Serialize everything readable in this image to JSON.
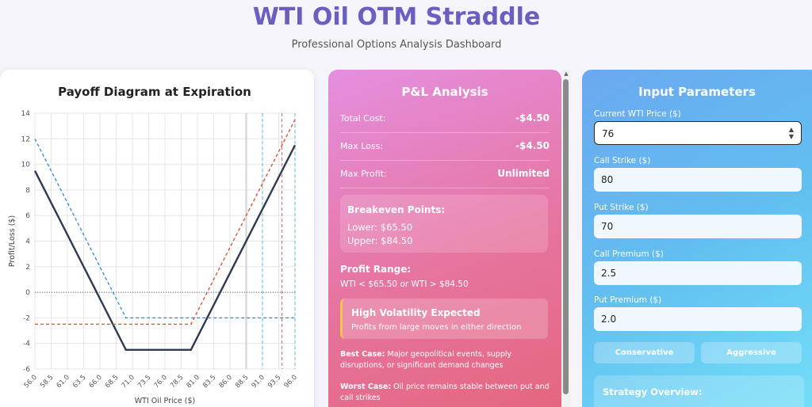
{
  "header": {
    "title": "WTI Oil OTM Straddle",
    "subtitle": "Professional Options Analysis Dashboard"
  },
  "chart_panel": {
    "title": "Payoff Diagram at Expiration"
  },
  "chart_data": {
    "type": "line",
    "xlabel": "WTI Oil Price ($)",
    "ylabel": "Profit/Loss ($)",
    "xlim": [
      56,
      96
    ],
    "ylim": [
      -6,
      14
    ],
    "x_ticks": [
      "56.0",
      "58.5",
      "61.0",
      "63.5",
      "66.0",
      "68.5",
      "71.0",
      "73.5",
      "76.0",
      "78.5",
      "81.0",
      "83.5",
      "86.0",
      "88.5",
      "91.0",
      "93.5",
      "96.0"
    ],
    "y_ticks": [
      "14",
      "12",
      "10",
      "8",
      "6",
      "4",
      "2",
      "0",
      "-2",
      "-4",
      "-6"
    ],
    "series": [
      {
        "style": "solid",
        "color": "#2f3b4f",
        "x": [
          56,
          65.5,
          70,
          80,
          84.5,
          96
        ],
        "y": [
          9.5,
          0,
          -4.5,
          -4.5,
          0,
          11.5
        ]
      },
      {
        "style": "dashed",
        "color": "#3b8fd6",
        "x": [
          56,
          70,
          96
        ],
        "y": [
          12,
          -2,
          -2
        ]
      },
      {
        "style": "dashed",
        "color": "#e0533a",
        "x": [
          56,
          80,
          96
        ],
        "y": [
          -2.5,
          -2.5,
          13.5
        ]
      }
    ],
    "reference_lines": [
      {
        "axis": "y",
        "value": 0,
        "color": "#666",
        "style": "dotted"
      },
      {
        "axis": "x",
        "value": 88.5,
        "color": "#bbbbbb",
        "style": "solid"
      },
      {
        "axis": "x",
        "value": 91,
        "color": "#5bb8d6",
        "style": "dashed"
      },
      {
        "axis": "x",
        "value": 94,
        "color": "#e05a6a",
        "style": "dashed"
      },
      {
        "axis": "x",
        "value": 96,
        "color": "#5bb8d6",
        "style": "dashed"
      }
    ]
  },
  "pl": {
    "title": "P&L Analysis",
    "rows": [
      {
        "label": "Total Cost:",
        "value": "-$4.50"
      },
      {
        "label": "Max Loss:",
        "value": "-$4.50"
      },
      {
        "label": "Max Profit:",
        "value": "Unlimited"
      }
    ],
    "breakeven": {
      "heading": "Breakeven Points:",
      "lower": "Lower: $65.50",
      "upper": "Upper: $84.50"
    },
    "profit_range": {
      "heading": "Profit Range:",
      "text": "WTI < $65.50 or WTI > $84.50"
    },
    "volatility": {
      "heading": "High Volatility Expected",
      "text": "Profits from large moves in either direction"
    },
    "best_case": {
      "label": "Best Case:",
      "text": "Major geopolitical events, supply disruptions, or significant demand changes"
    },
    "worst_case": {
      "label": "Worst Case:",
      "text": "Oil price remains stable between put and call strikes"
    }
  },
  "inputs": {
    "title": "Input Parameters",
    "fields": [
      {
        "label": "Current WTI Price ($)",
        "value": "76"
      },
      {
        "label": "Call Strike ($)",
        "value": "80"
      },
      {
        "label": "Put Strike ($)",
        "value": "70"
      },
      {
        "label": "Call Premium ($)",
        "value": "2.5"
      },
      {
        "label": "Put Premium ($)",
        "value": "2.0"
      }
    ],
    "buttons": {
      "conservative": "Conservative",
      "aggressive": "Aggressive"
    },
    "overview_heading": "Strategy Overview:"
  }
}
